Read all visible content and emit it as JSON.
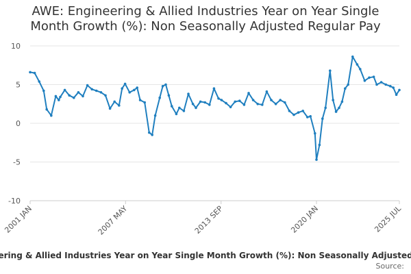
{
  "chart_data": {
    "type": "line",
    "title_line1": "AWE: Engineering & Allied Industries Year on Year Single",
    "title_line2": "Month Growth (%): Non Seasonally Adjusted Regular Pay",
    "y_ticks": [
      "10",
      "5",
      "0",
      "-5",
      "-10"
    ],
    "ylim": [
      -10,
      10
    ],
    "x_ticks": [
      "2001 JAN",
      "2007 MAY",
      "2013 SEP",
      "2020 JAN",
      "2025 JUL"
    ],
    "series": [
      {
        "name": "AWE: Engineering & Allied Industries Year on Year Single Month Growth (%): Non Seasonally Adjusted Regular Pay",
        "color": "#1f7fbf",
        "x": [
          2001.0,
          2001.3,
          2001.6,
          2001.9,
          2002.1,
          2002.4,
          2002.7,
          2002.9,
          2003.0,
          2003.3,
          2003.6,
          2003.9,
          2004.2,
          2004.5,
          2004.8,
          2005.1,
          2005.4,
          2005.7,
          2006.0,
          2006.3,
          2006.6,
          2006.9,
          2007.1,
          2007.3,
          2007.6,
          2007.9,
          2008.1,
          2008.3,
          2008.6,
          2008.9,
          2009.1,
          2009.3,
          2009.6,
          2009.8,
          2010.0,
          2010.2,
          2010.4,
          2010.7,
          2010.9,
          2011.2,
          2011.5,
          2011.8,
          2012.0,
          2012.3,
          2012.6,
          2012.9,
          2013.2,
          2013.5,
          2013.7,
          2014.0,
          2014.3,
          2014.6,
          2014.9,
          2015.2,
          2015.5,
          2015.8,
          2016.1,
          2016.4,
          2016.7,
          2017.0,
          2017.3,
          2017.6,
          2017.9,
          2018.2,
          2018.5,
          2018.8,
          2019.1,
          2019.4,
          2019.6,
          2019.9,
          2020.0,
          2020.2,
          2020.4,
          2020.6,
          2020.9,
          2021.1,
          2021.3,
          2021.5,
          2021.7,
          2021.9,
          2022.1,
          2022.4,
          2022.7,
          2022.9,
          2023.2,
          2023.5,
          2023.8,
          2024.0,
          2024.3,
          2024.6,
          2024.9,
          2025.1,
          2025.3,
          2025.5
        ],
        "y": [
          6.6,
          6.5,
          5.4,
          4.2,
          1.8,
          1.0,
          3.5,
          3.0,
          3.4,
          4.3,
          3.6,
          3.3,
          4.0,
          3.5,
          4.9,
          4.4,
          4.2,
          4.0,
          3.6,
          1.9,
          2.8,
          2.3,
          4.5,
          5.1,
          4.0,
          4.3,
          4.6,
          3.0,
          2.7,
          -1.2,
          -1.5,
          1.0,
          3.3,
          4.8,
          5.0,
          3.6,
          2.2,
          1.2,
          2.0,
          1.6,
          3.8,
          2.5,
          2.0,
          2.8,
          2.7,
          2.4,
          4.5,
          3.2,
          3.0,
          2.6,
          2.1,
          2.8,
          2.9,
          2.4,
          3.9,
          3.0,
          2.5,
          2.4,
          4.1,
          3.0,
          2.5,
          3.0,
          2.7,
          1.6,
          1.1,
          1.4,
          1.6,
          0.8,
          0.9,
          -1.3,
          -4.7,
          -2.8,
          0.6,
          2.0,
          6.8,
          3.0,
          1.5,
          2.0,
          2.8,
          4.5,
          5.0,
          8.6,
          7.6,
          7.0,
          5.5,
          5.9,
          6.0,
          5.0,
          5.3,
          5.0,
          4.8,
          4.6,
          3.7,
          4.3
        ]
      }
    ],
    "source_label": "Source:"
  }
}
